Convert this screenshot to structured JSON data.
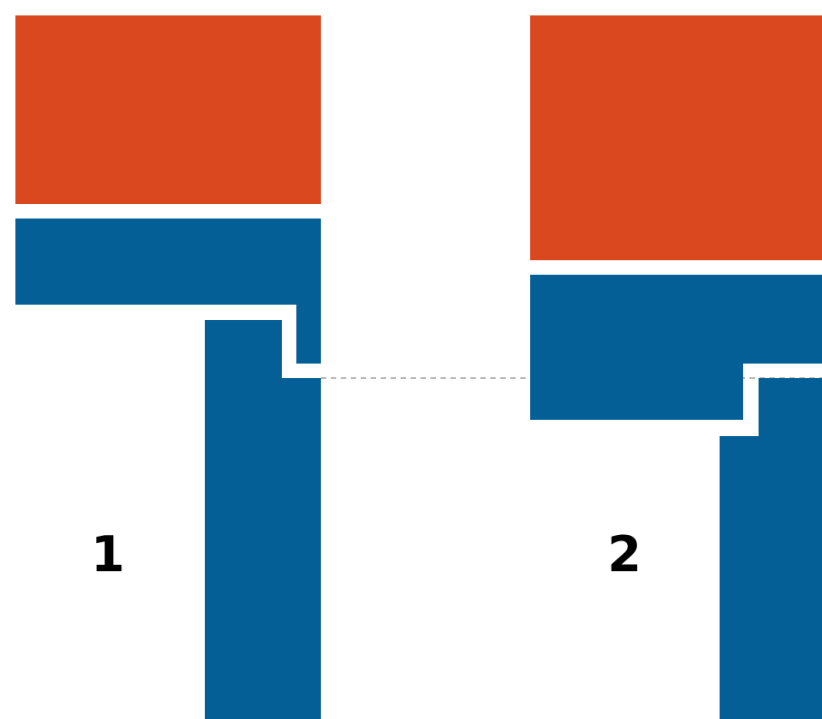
{
  "colors": {
    "orange": "#d9481e",
    "blue": "#035f96",
    "background": "#ffffff",
    "dashed_line": "#b8b8b8",
    "label": "#000000"
  },
  "panels": [
    {
      "label": "1"
    },
    {
      "label": "2"
    }
  ]
}
